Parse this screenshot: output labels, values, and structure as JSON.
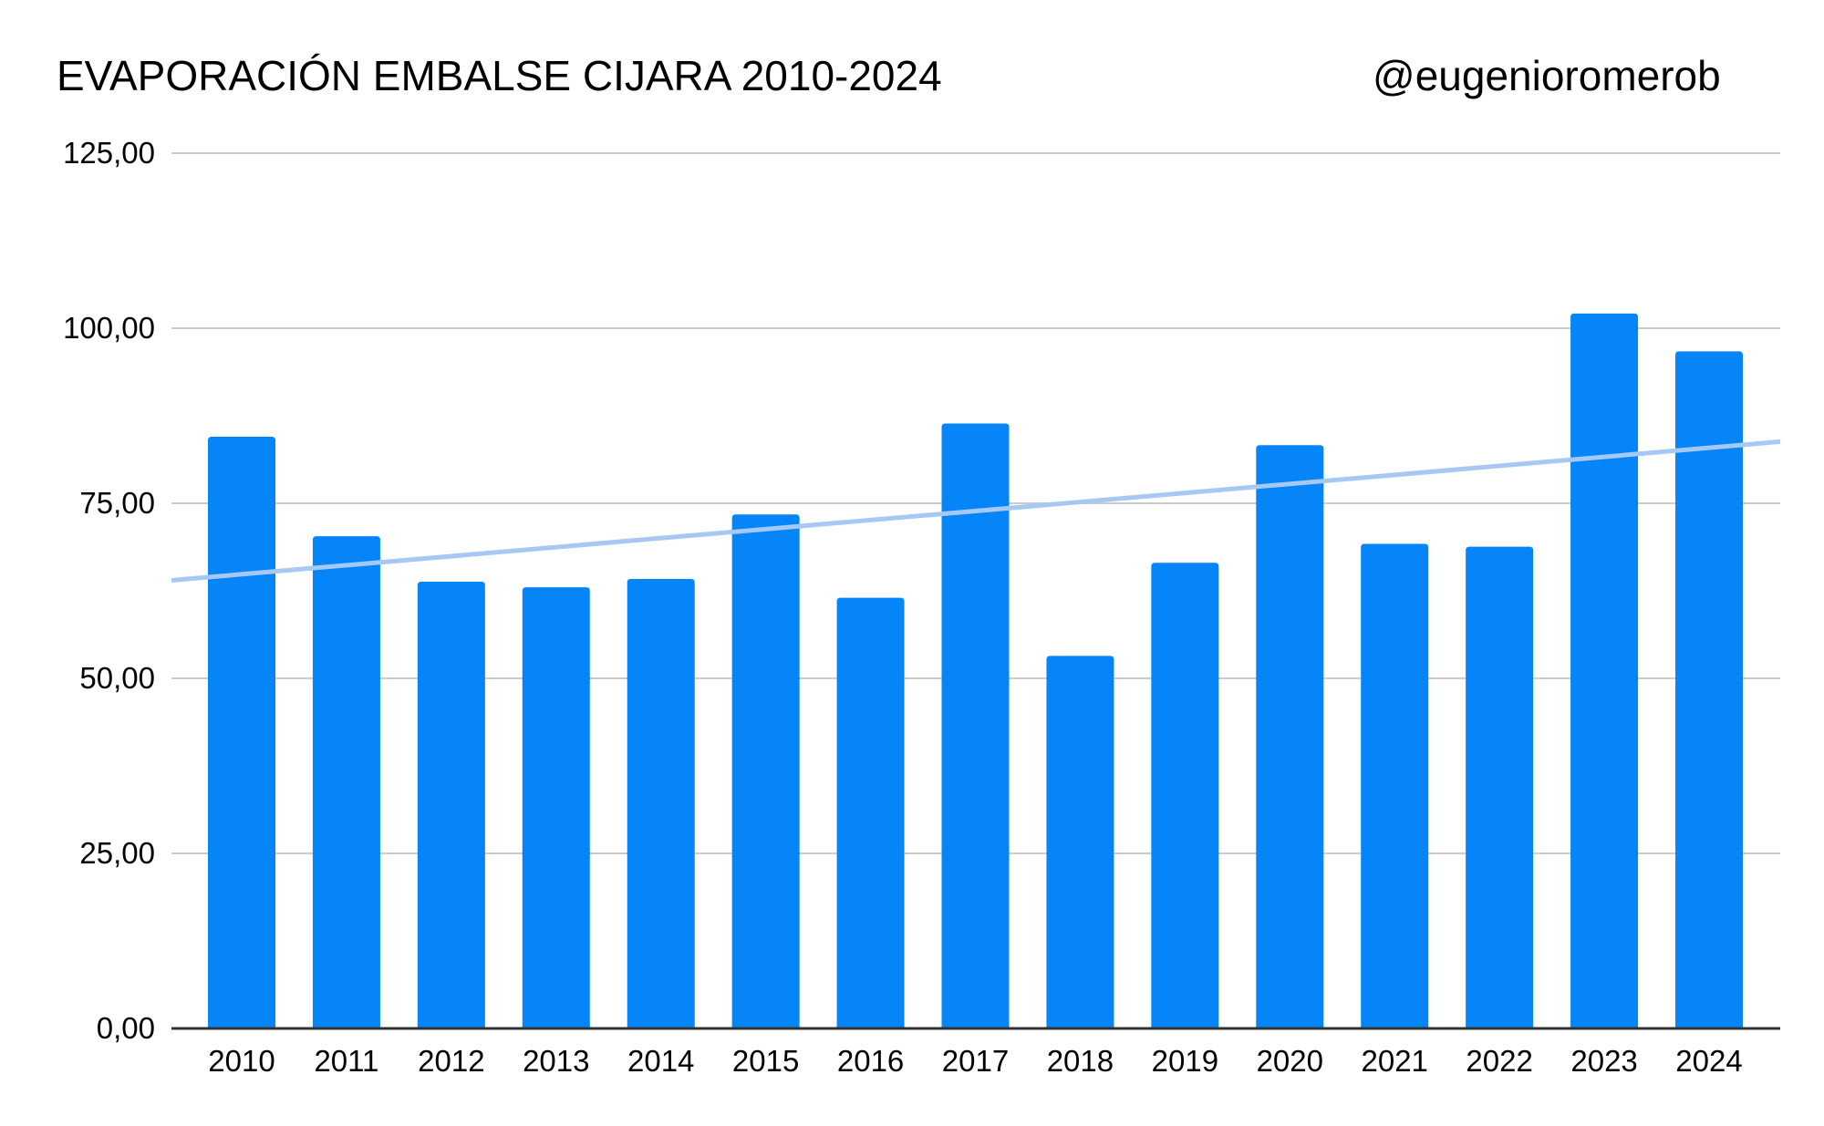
{
  "chart_data": {
    "type": "bar",
    "title": "EVAPORACIÓN EMBALSE CIJARA 2010-2024",
    "credit": "@eugenioromerob",
    "xlabel": "",
    "ylabel": "",
    "categories": [
      "2010",
      "2011",
      "2012",
      "2013",
      "2014",
      "2015",
      "2016",
      "2017",
      "2018",
      "2019",
      "2020",
      "2021",
      "2022",
      "2023",
      "2024"
    ],
    "series": [
      {
        "name": "Evaporación",
        "values": [
          84.5,
          70.3,
          63.8,
          63.0,
          64.2,
          73.4,
          61.5,
          86.4,
          53.2,
          66.5,
          83.3,
          69.2,
          68.8,
          102.1,
          96.7
        ],
        "color": "#0685f9"
      }
    ],
    "trendline": {
      "start": 64.0,
      "end": 83.8,
      "color": "#a6c8f5"
    },
    "ylim": [
      0,
      125
    ],
    "yticks": [
      {
        "value": 0,
        "label": "0,00"
      },
      {
        "value": 25,
        "label": "25,00"
      },
      {
        "value": 50,
        "label": "50,00"
      },
      {
        "value": 75,
        "label": "75,00"
      },
      {
        "value": 100,
        "label": "100,00"
      },
      {
        "value": 125,
        "label": "125,00"
      }
    ],
    "grid": true,
    "legend": "none"
  }
}
